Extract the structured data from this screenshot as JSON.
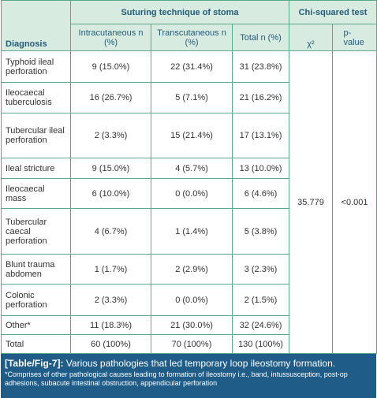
{
  "table": {
    "header": {
      "diagnosis": "Diagnosis",
      "group1": "Suturing technique of stoma",
      "group2": "Chi-squared test",
      "columns": [
        "Intracutaneous n (%)",
        "Transcutaneous n (%)",
        "Total n (%)",
        "χ²",
        "p-value"
      ]
    },
    "rows": [
      [
        "Typhoid ileal perforation",
        "9 (15.0%)",
        "22 (31.4%)",
        "31 (23.8%)"
      ],
      [
        "Ileocaecal tuberculosis",
        "16 (26.7%)",
        "5 (7.1%)",
        "21 (16.2%)"
      ],
      [
        "Tubercular ileal perforation",
        "2 (3.3%)",
        "15 (21.4%)",
        "17 (13.1%)"
      ],
      [
        "Ileal stricture",
        "9 (15.0%)",
        "4 (5.7%)",
        "13 (10.0%)"
      ],
      [
        "Ileocaecal mass",
        "6 (10.0%)",
        "0 (0.0%)",
        "6 (4.6%)"
      ],
      [
        "Tubercular caecal perforation",
        "4 (6.7%)",
        "1 (1.4%)",
        "5 (3.8%)"
      ],
      [
        "Blunt trauma abdomen",
        "1 (1.7%)",
        "2 (2.9%)",
        "3 (2.3%)"
      ],
      [
        "Colonic perforation",
        "2 (3.3%)",
        "0 (0.0%)",
        "2 (1.5%)"
      ],
      [
        "Other*",
        "11 (18.3%)",
        "21 (30.0%)",
        "32 (24.6%)"
      ],
      [
        "Total",
        "60 (100%)",
        "70 (100%)",
        "130 (100%)"
      ]
    ],
    "chi_squared": "35.779",
    "p_value": "<0.001"
  },
  "caption": {
    "label": "[Table/Fig-7]:",
    "text": "Various pathologies that led temporary loop ileostomy formation.",
    "footnote": "*Comprises of other pathological causes leading to formation of ileostomy i.e., band, intussusception, post-op adhesions, subacute intestinal obstruction, appendicular perforation"
  }
}
